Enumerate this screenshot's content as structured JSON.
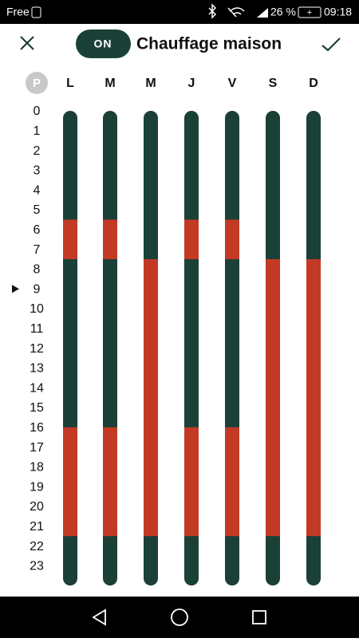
{
  "status_bar": {
    "carrier": "Free",
    "battery": "26 %",
    "time": "09:18"
  },
  "header": {
    "toggle": "ON",
    "title": "Chauffage maison"
  },
  "preset": "P",
  "hours": [
    0,
    1,
    2,
    3,
    4,
    5,
    6,
    7,
    8,
    9,
    10,
    11,
    12,
    13,
    14,
    15,
    16,
    17,
    18,
    19,
    20,
    21,
    22,
    23
  ],
  "current_hour": 9,
  "eco_color": "#1b4037",
  "comfort_color": "#c23a25",
  "days": [
    {
      "label": "L",
      "comfort": [
        [
          5.5,
          7.5
        ],
        [
          16,
          21.5
        ]
      ]
    },
    {
      "label": "M",
      "comfort": [
        [
          5.5,
          7.5
        ],
        [
          16,
          21.5
        ]
      ]
    },
    {
      "label": "M",
      "comfort": [
        [
          7.5,
          21.5
        ]
      ]
    },
    {
      "label": "J",
      "comfort": [
        [
          5.5,
          7.5
        ],
        [
          16,
          21.5
        ]
      ]
    },
    {
      "label": "V",
      "comfort": [
        [
          5.5,
          7.5
        ],
        [
          16,
          21.5
        ]
      ]
    },
    {
      "label": "S",
      "comfort": [
        [
          7.5,
          21.5
        ]
      ]
    },
    {
      "label": "D",
      "comfort": [
        [
          7.5,
          21.5
        ]
      ]
    }
  ]
}
